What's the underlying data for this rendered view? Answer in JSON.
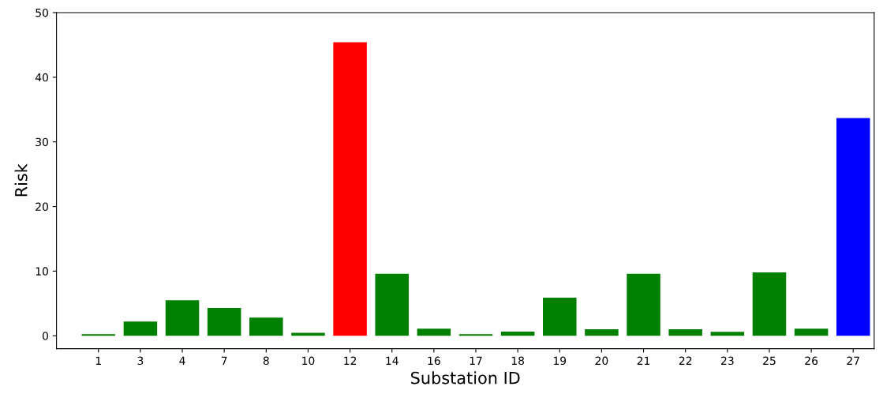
{
  "chart_data": {
    "type": "bar",
    "xlabel": "Substation ID",
    "ylabel": "Risk",
    "categories": [
      "1",
      "3",
      "4",
      "7",
      "8",
      "10",
      "12",
      "14",
      "16",
      "17",
      "18",
      "19",
      "20",
      "21",
      "22",
      "23",
      "25",
      "26",
      "27"
    ],
    "values": [
      0.25,
      2.2,
      5.5,
      4.3,
      2.8,
      0.45,
      45.4,
      9.6,
      1.1,
      0.25,
      0.65,
      5.9,
      1.0,
      9.6,
      1.0,
      0.6,
      9.8,
      1.1,
      33.7
    ],
    "colors": [
      "#008000",
      "#008000",
      "#008000",
      "#008000",
      "#008000",
      "#008000",
      "#ff0000",
      "#008000",
      "#008000",
      "#008000",
      "#008000",
      "#008000",
      "#008000",
      "#008000",
      "#008000",
      "#008000",
      "#008000",
      "#008000",
      "#0000ff"
    ],
    "ylim": [
      -2,
      50
    ],
    "yticks": [
      0,
      10,
      20,
      30,
      40,
      50
    ],
    "grid": false,
    "legend": false
  }
}
